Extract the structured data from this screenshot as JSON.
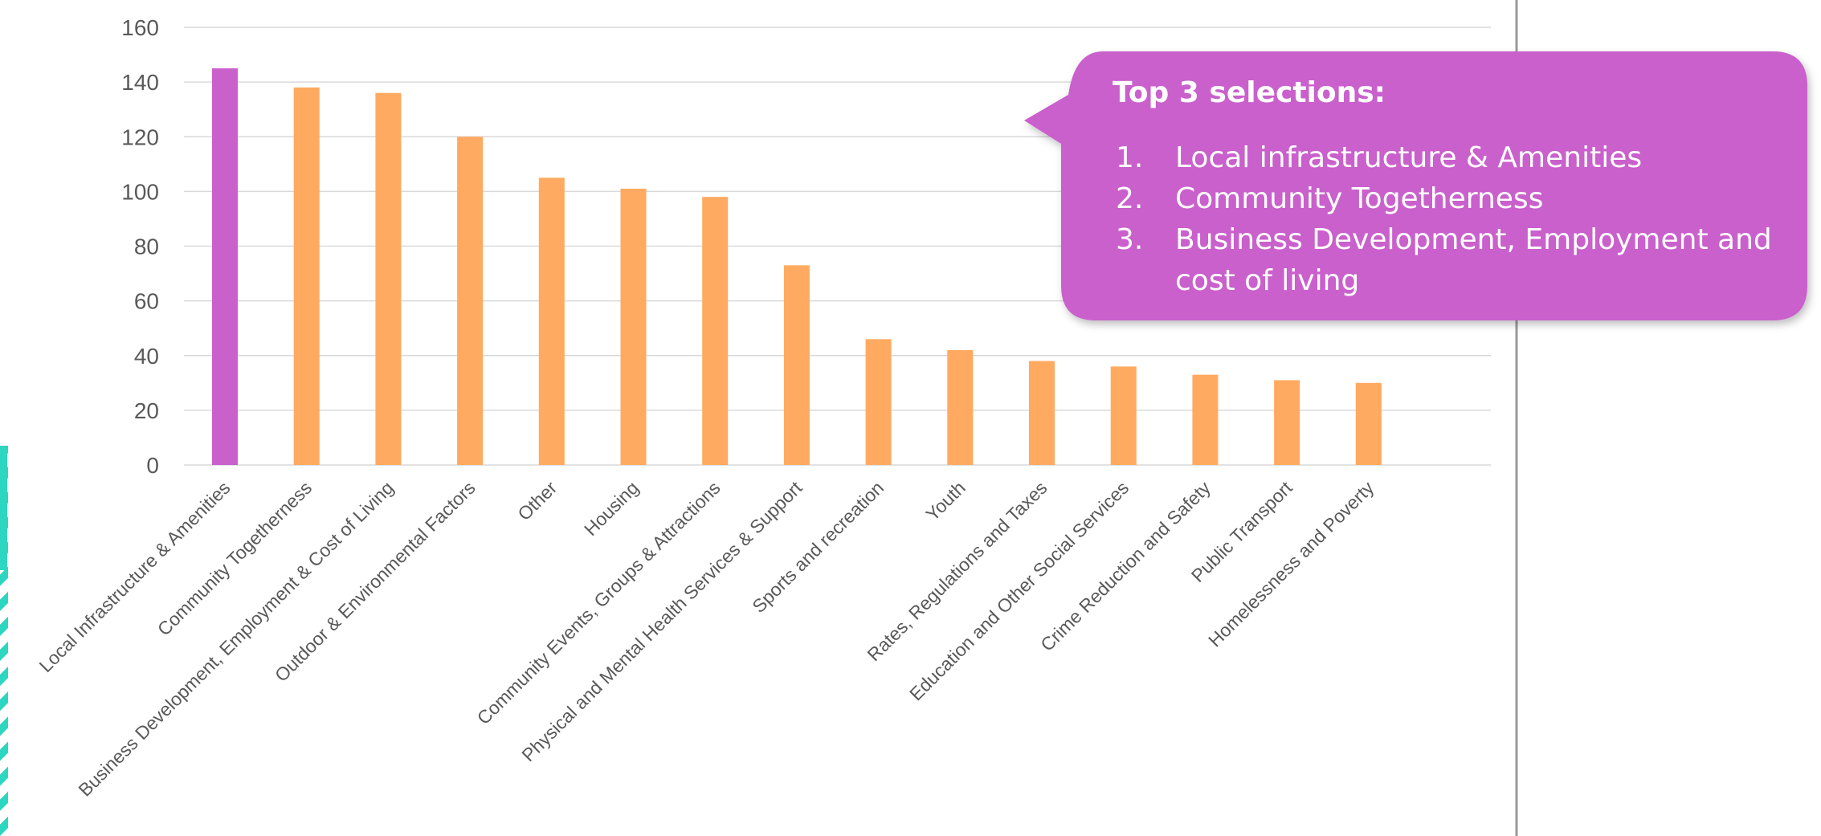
{
  "chart_data": {
    "type": "bar",
    "categories": [
      "Local Infrastructure & Amenities",
      "Community Togetherness",
      "Business Development, Employment & Cost of Living",
      "Outdoor & Environmental Factors",
      "Other",
      "Housing",
      "Community Events, Groups & Attractions",
      "Physical and Mental Health Services & Support",
      "Sports and recreation",
      "Youth",
      "Rates, Regulations and Taxes",
      "Education and Other Social Services",
      "Crime Reduction and Safety",
      "Public Transport",
      "Homelessness and Poverty"
    ],
    "values": [
      145,
      138,
      136,
      120,
      105,
      101,
      98,
      73,
      46,
      42,
      38,
      36,
      33,
      31,
      30
    ],
    "ylim": [
      0,
      160
    ],
    "yticks": [
      0,
      20,
      40,
      60,
      80,
      100,
      120,
      140,
      160
    ],
    "grid": true,
    "highlight_index": 0,
    "colors": {
      "bar": "#ffaa60",
      "highlight": "#c960cc",
      "grid": "#d9d9d9",
      "axis_text": "#595959"
    }
  },
  "callout": {
    "title": "Top 3 selections:",
    "items": [
      {
        "num": "1.",
        "lines": [
          "Local infrastructure & Amenities"
        ]
      },
      {
        "num": "2.",
        "lines": [
          "Community Togetherness"
        ]
      },
      {
        "num": "3.",
        "lines": [
          "Business Development, Employment and",
          "cost of living"
        ]
      }
    ],
    "color": "#c960cc"
  },
  "decor": {
    "left_accent_color": "#2dd6c1"
  }
}
